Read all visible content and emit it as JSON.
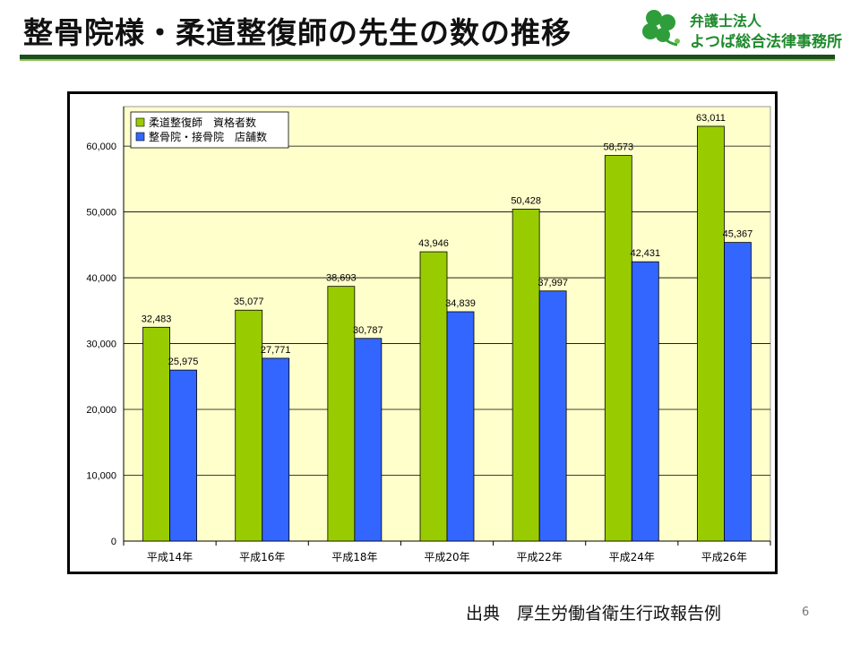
{
  "slide": {
    "title": "整骨院様・柔道整復師の先生の数の推移",
    "source": "出典　厚生労働省衛生行政報告例",
    "page_number": "6"
  },
  "logo": {
    "line1": "弁護士法人",
    "line2": "よつば総合法律事務所",
    "icon": "clover-icon"
  },
  "colors": {
    "accent_dark_green": "#1b4f1b",
    "logo_green": "#1e8a2c",
    "plot_background": "#ffffcc",
    "series_green": "#99cc00",
    "series_blue": "#3366ff"
  },
  "chart_data": {
    "type": "bar",
    "categories": [
      "平成14年",
      "平成16年",
      "平成18年",
      "平成20年",
      "平成22年",
      "平成24年",
      "平成26年"
    ],
    "series": [
      {
        "name": "柔道整復師　資格者数",
        "color": "#99cc00",
        "values": [
          32483,
          35077,
          38693,
          43946,
          50428,
          58573,
          63011
        ],
        "labels": [
          "32,483",
          "35,077",
          "38,693",
          "43,946",
          "50,428",
          "58,573",
          "63,011"
        ]
      },
      {
        "name": "整骨院・接骨院　店舗数",
        "color": "#3366ff",
        "values": [
          25975,
          27771,
          30787,
          34839,
          37997,
          42431,
          45367
        ],
        "labels": [
          "25,975",
          "27,771",
          "30,787",
          "34,839",
          "37,997",
          "42,431",
          "45,367"
        ]
      }
    ],
    "yticks": [
      {
        "value": 0,
        "label": "0"
      },
      {
        "value": 10000,
        "label": "10,000"
      },
      {
        "value": 20000,
        "label": "20,000"
      },
      {
        "value": 30000,
        "label": "30,000"
      },
      {
        "value": 40000,
        "label": "40,000"
      },
      {
        "value": 50000,
        "label": "50,000"
      },
      {
        "value": 60000,
        "label": "60,000"
      }
    ],
    "ylim": [
      0,
      66000
    ],
    "grid": true,
    "legend_position": "top-left"
  }
}
